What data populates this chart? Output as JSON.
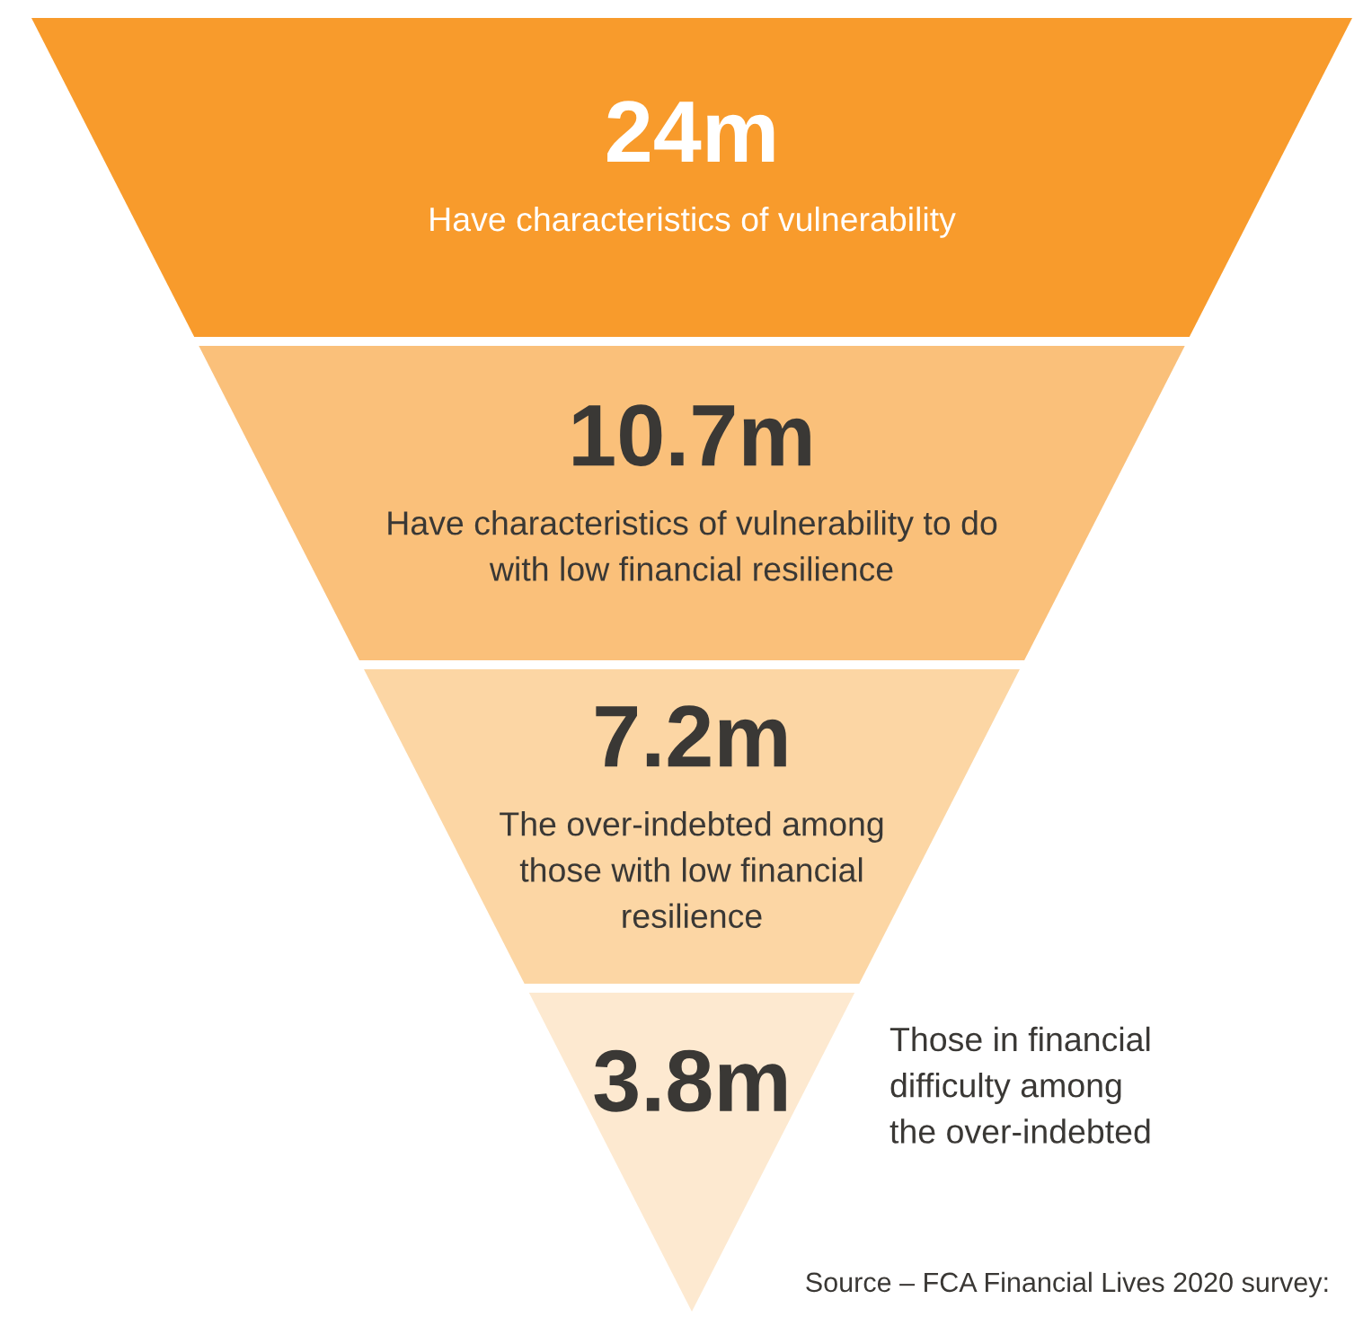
{
  "chart_data": {
    "type": "other",
    "categories": [
      "Have characteristics of vulnerability",
      "Have characteristics of vulnerability to do\nwith low financial resilience",
      "The over-indebted among\nthose with low financial\nresilience",
      "Those in financial\ndifficulty among\nthe over-indebted"
    ],
    "values": [
      24,
      10.7,
      7.2,
      3.8
    ],
    "value_labels": [
      "24m",
      "10.7m",
      "7.2m",
      "3.8m"
    ],
    "colors": [
      "#f89b2c",
      "#fac07a",
      "#fcd6a4",
      "#fde9d0"
    ],
    "annotations": [
      "Source – FCA Financial Lives 2020 survey:"
    ]
  }
}
